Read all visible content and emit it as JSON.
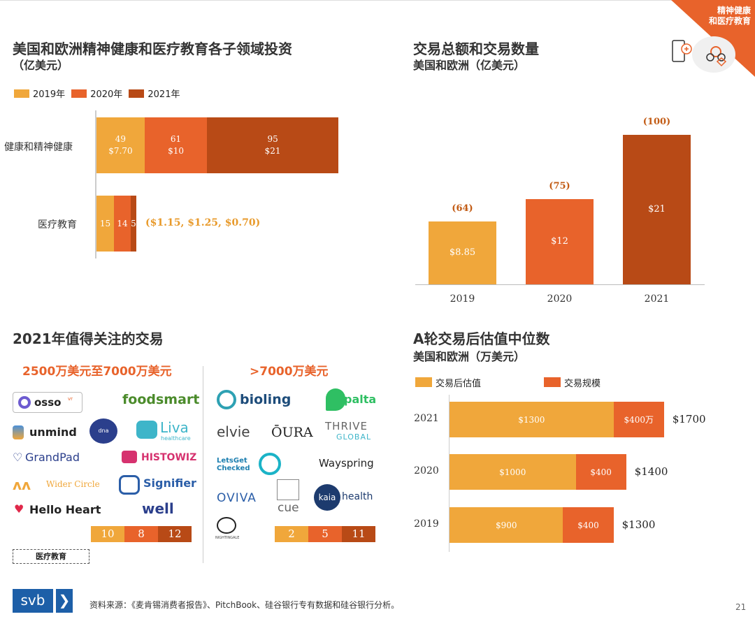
{
  "header": {
    "corner_label": "精神健康\n和医疗教育"
  },
  "colors": {
    "c2019": "#f0a73b",
    "c2020": "#e8632b",
    "c2021": "#b84a16",
    "accent": "#e8632b"
  },
  "panel1": {
    "title": "美国和欧洲精神健康和医疗教育各子领域投资",
    "subtitle": "（亿美元）",
    "legend": [
      "2019年",
      "2020年",
      "2021年"
    ]
  },
  "panel2": {
    "title": "交易总额和交易数量",
    "subtitle": "美国和欧洲（亿美元）"
  },
  "panel3": {
    "title": "2021年值得关注的交易",
    "col1_header": "2500万美元至7000万美元",
    "col2_header": ">7000万美元",
    "col1_logos": [
      "osso",
      "vr",
      "foodsmart",
      "unmind",
      "dna nudge",
      "Liva",
      "healthcare",
      "GrandPad",
      "HISTOWIZ",
      "Wider Circle",
      "Signifier",
      "Hello Heart",
      "well"
    ],
    "col2_logos": [
      "bioling",
      "palta",
      "elvie",
      "ŌURA",
      "THRIVE",
      "GLOBAL",
      "LetsGet Checked",
      "Wayspring",
      "OVIVA",
      "cue",
      "kaia",
      "health",
      "NIGHTINGALE"
    ],
    "col1_counts": [
      "10",
      "8",
      "12"
    ],
    "col2_counts": [
      "2",
      "5",
      "11"
    ],
    "tag": "医疗教育"
  },
  "panel4": {
    "title": "A轮交易后估值中位数",
    "subtitle": "美国和欧洲（万美元）",
    "legend": [
      "交易后估值",
      "交易规模"
    ]
  },
  "footer": {
    "logo_text": "svb",
    "source": "资料来源：《麦肯锡消费者报告》、PitchBook、硅谷银行专有数据和硅谷银行分析。",
    "page": "21"
  },
  "chart_data": [
    {
      "type": "bar",
      "orientation": "horizontal-stacked",
      "categories": [
        "健康和精神健康",
        "医疗教育"
      ],
      "series": [
        {
          "name": "2019年",
          "values": [
            7.7,
            1.15
          ],
          "labels": [
            "49\n$7.70",
            "15"
          ]
        },
        {
          "name": "2020年",
          "values": [
            10,
            1.25
          ],
          "labels": [
            "61\n$10",
            "14"
          ]
        },
        {
          "name": "2021年",
          "values": [
            21,
            0.7
          ],
          "labels": [
            "95\n$21",
            "5"
          ]
        }
      ],
      "annotation": "($1.15, $1.25, $0.70)"
    },
    {
      "type": "bar",
      "categories": [
        "2019",
        "2020",
        "2021"
      ],
      "values": [
        8.85,
        12,
        21
      ],
      "value_labels": [
        "$8.85",
        "$12",
        "$21"
      ],
      "top_labels": [
        "(64)",
        "(75)",
        "(100)"
      ]
    },
    {
      "type": "bar",
      "orientation": "horizontal-stacked",
      "categories": [
        "2021",
        "2020",
        "2019"
      ],
      "series": [
        {
          "name": "交易后估值",
          "values": [
            1300,
            1000,
            900
          ],
          "labels": [
            "$1300",
            "$1000",
            "$900"
          ]
        },
        {
          "name": "交易规模",
          "values": [
            400,
            400,
            400
          ],
          "labels": [
            "$400万",
            "$400",
            "$400"
          ]
        }
      ],
      "totals": [
        "$1700",
        "$1400",
        "$1300"
      ]
    }
  ]
}
